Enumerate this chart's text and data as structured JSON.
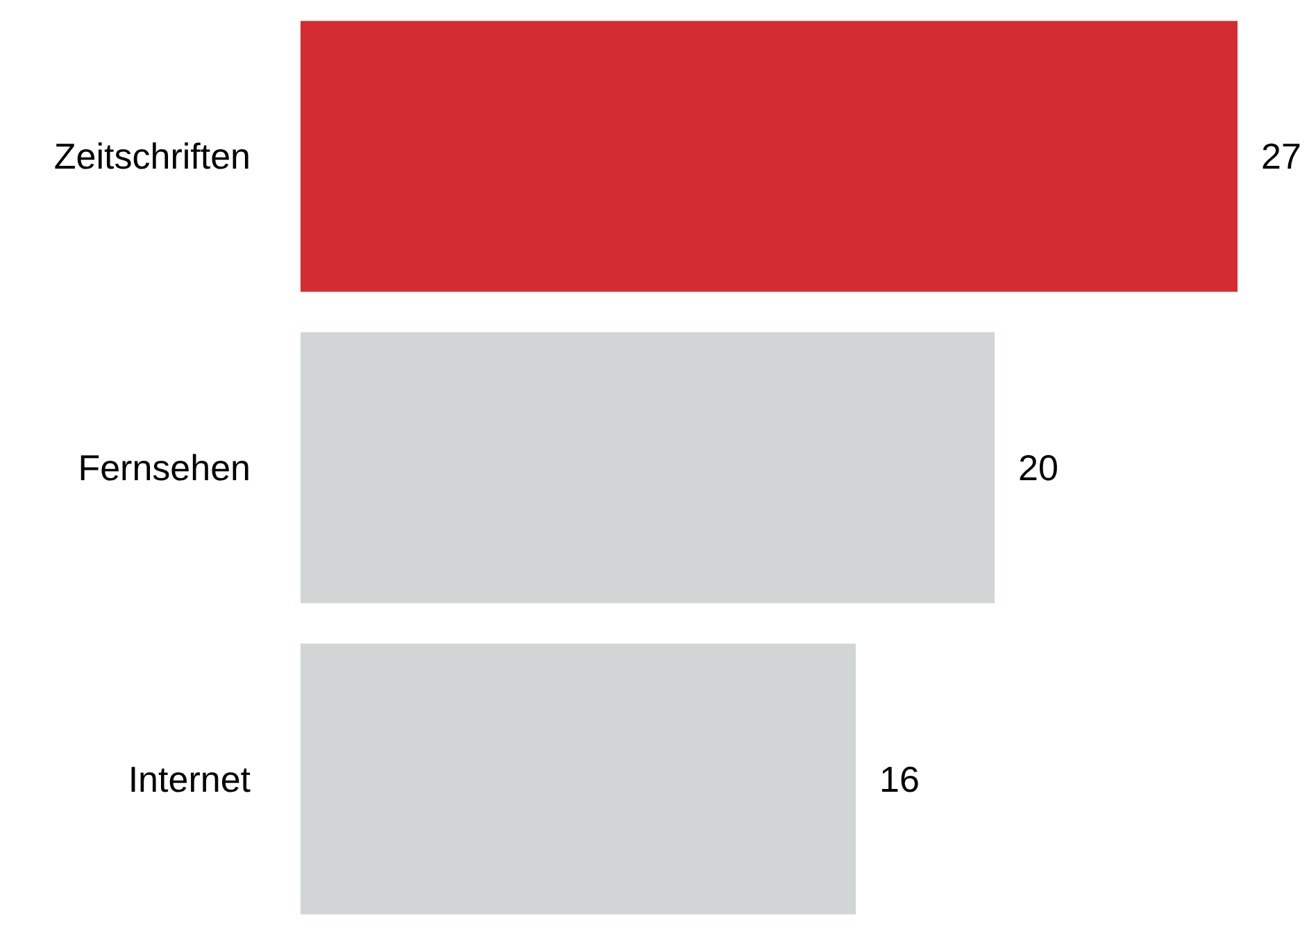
{
  "chart_data": {
    "type": "bar",
    "orientation": "horizontal",
    "categories": [
      "Zeitschriften",
      "Fernsehen",
      "Internet"
    ],
    "values": [
      27,
      20,
      16
    ],
    "colors": [
      "#d32c31",
      "#d1d5d6",
      "#d1d5d6"
    ],
    "data_labels": true
  }
}
